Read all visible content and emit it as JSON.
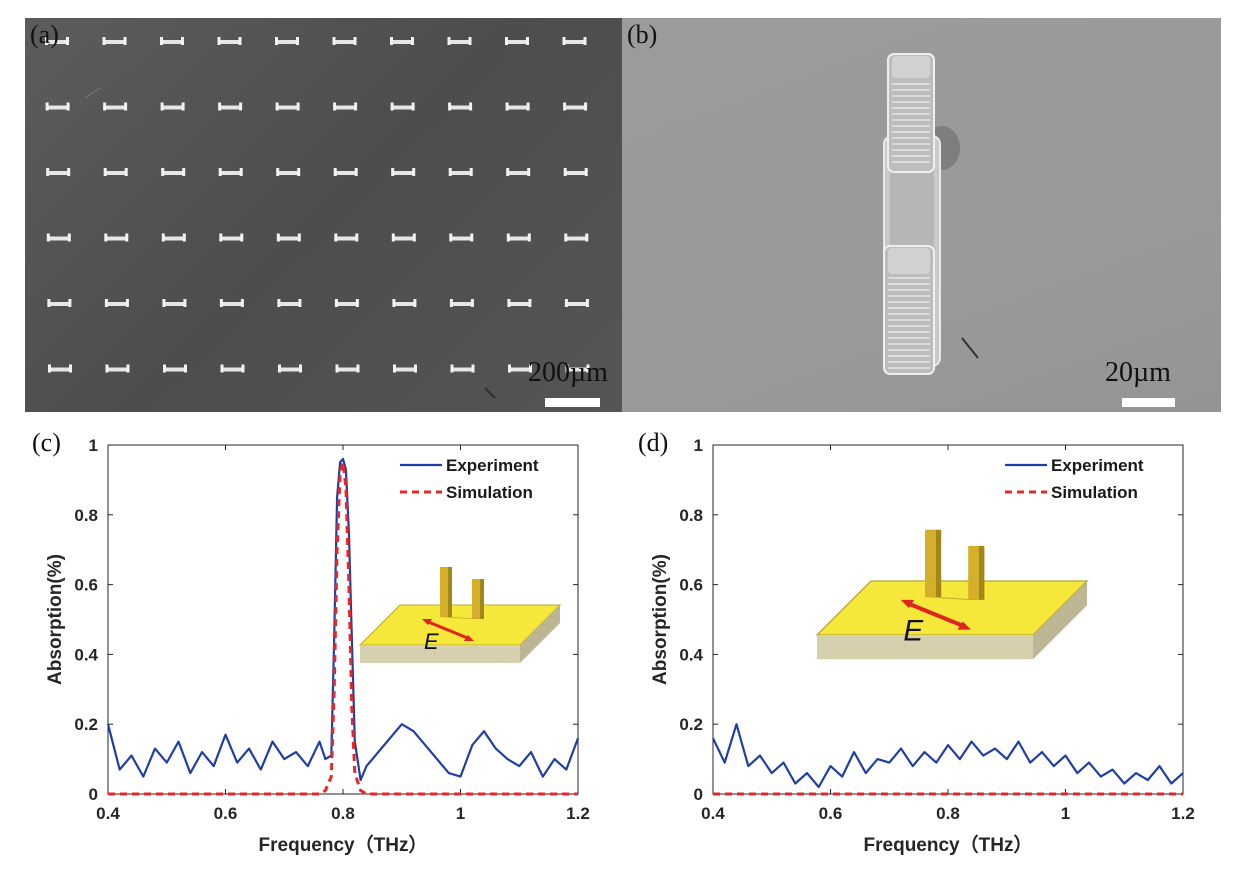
{
  "figure": {
    "panel_a": {
      "label": "(a)",
      "scale_text": "200µm"
    },
    "panel_b": {
      "label": "(b)",
      "scale_text": "20µm"
    },
    "panel_c": {
      "label": "(c)"
    },
    "panel_d": {
      "label": "(d)"
    },
    "inset_field_label": "E"
  },
  "chart_data": [
    {
      "panel": "(c)",
      "type": "line",
      "xlabel": "Frequency（THz）",
      "ylabel": "Absorption(%)",
      "xlim": [
        0.4,
        1.2
      ],
      "ylim": [
        0,
        1
      ],
      "xticks": [
        "0.4",
        "0.6",
        "0.8",
        "1",
        "1.2"
      ],
      "yticks": [
        "0",
        "0.2",
        "0.4",
        "0.6",
        "0.8",
        "1"
      ],
      "legend_position": "top-right",
      "series": [
        {
          "name": "Experiment",
          "color": "#1f3ea6",
          "style": "solid",
          "x": [
            0.4,
            0.42,
            0.44,
            0.46,
            0.48,
            0.5,
            0.52,
            0.54,
            0.56,
            0.58,
            0.6,
            0.62,
            0.64,
            0.66,
            0.68,
            0.7,
            0.72,
            0.74,
            0.76,
            0.77,
            0.78,
            0.785,
            0.79,
            0.795,
            0.8,
            0.805,
            0.81,
            0.815,
            0.82,
            0.83,
            0.84,
            0.86,
            0.88,
            0.9,
            0.92,
            0.94,
            0.96,
            0.98,
            1.0,
            1.02,
            1.04,
            1.06,
            1.08,
            1.1,
            1.12,
            1.14,
            1.16,
            1.18,
            1.2
          ],
          "y": [
            0.2,
            0.07,
            0.11,
            0.05,
            0.13,
            0.09,
            0.15,
            0.06,
            0.12,
            0.08,
            0.17,
            0.09,
            0.13,
            0.07,
            0.15,
            0.1,
            0.12,
            0.08,
            0.15,
            0.1,
            0.11,
            0.45,
            0.85,
            0.95,
            0.96,
            0.93,
            0.75,
            0.45,
            0.15,
            0.04,
            0.08,
            0.12,
            0.16,
            0.2,
            0.18,
            0.14,
            0.1,
            0.06,
            0.05,
            0.14,
            0.18,
            0.13,
            0.1,
            0.08,
            0.12,
            0.05,
            0.1,
            0.07,
            0.16
          ]
        },
        {
          "name": "Simulation",
          "color": "#e8262a",
          "style": "dashed",
          "x": [
            0.4,
            0.6,
            0.76,
            0.77,
            0.78,
            0.785,
            0.79,
            0.795,
            0.8,
            0.805,
            0.81,
            0.815,
            0.82,
            0.83,
            0.84,
            1.0,
            1.2
          ],
          "y": [
            0.0,
            0.0,
            0.0,
            0.01,
            0.05,
            0.3,
            0.7,
            0.92,
            0.95,
            0.88,
            0.6,
            0.25,
            0.06,
            0.01,
            0.0,
            0.0,
            0.0
          ]
        }
      ]
    },
    {
      "panel": "(d)",
      "type": "line",
      "xlabel": "Frequency（THz）",
      "ylabel": "Absorption(%)",
      "xlim": [
        0.4,
        1.2
      ],
      "ylim": [
        0,
        1
      ],
      "xticks": [
        "0.4",
        "0.6",
        "0.8",
        "1",
        "1.2"
      ],
      "yticks": [
        "0",
        "0.2",
        "0.4",
        "0.6",
        "0.8",
        "1"
      ],
      "legend_position": "top-right",
      "series": [
        {
          "name": "Experiment",
          "color": "#1f3ea6",
          "style": "solid",
          "x": [
            0.4,
            0.42,
            0.44,
            0.46,
            0.48,
            0.5,
            0.52,
            0.54,
            0.56,
            0.58,
            0.6,
            0.62,
            0.64,
            0.66,
            0.68,
            0.7,
            0.72,
            0.74,
            0.76,
            0.78,
            0.8,
            0.82,
            0.84,
            0.86,
            0.88,
            0.9,
            0.92,
            0.94,
            0.96,
            0.98,
            1.0,
            1.02,
            1.04,
            1.06,
            1.08,
            1.1,
            1.12,
            1.14,
            1.16,
            1.18,
            1.2
          ],
          "y": [
            0.16,
            0.09,
            0.2,
            0.08,
            0.11,
            0.06,
            0.09,
            0.03,
            0.06,
            0.02,
            0.08,
            0.05,
            0.12,
            0.06,
            0.1,
            0.09,
            0.13,
            0.08,
            0.12,
            0.09,
            0.14,
            0.1,
            0.15,
            0.11,
            0.13,
            0.1,
            0.15,
            0.09,
            0.12,
            0.08,
            0.11,
            0.06,
            0.09,
            0.05,
            0.07,
            0.03,
            0.06,
            0.04,
            0.08,
            0.03,
            0.06
          ]
        },
        {
          "name": "Simulation",
          "color": "#e8262a",
          "style": "dashed",
          "x": [
            0.4,
            0.6,
            0.8,
            1.0,
            1.2
          ],
          "y": [
            0.0,
            0.0,
            0.0,
            0.0,
            0.0
          ]
        }
      ]
    }
  ]
}
